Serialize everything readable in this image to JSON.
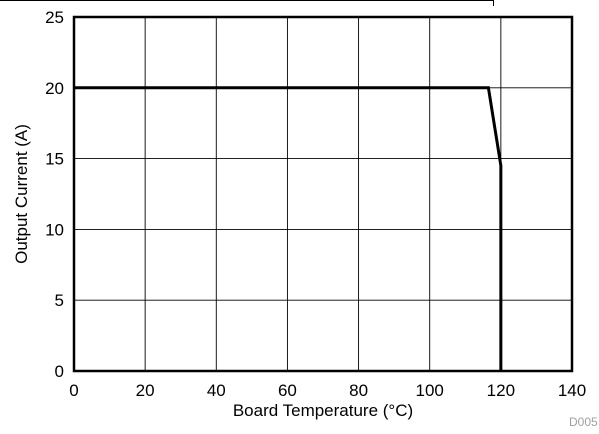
{
  "chart_data": {
    "type": "line",
    "title": "",
    "xlabel": "Board Temperature (°C)",
    "ylabel": "Output Current (A)",
    "xlim": [
      0,
      140
    ],
    "ylim": [
      0,
      25
    ],
    "xticks": [
      0,
      20,
      40,
      60,
      80,
      100,
      120,
      140
    ],
    "yticks": [
      0,
      5,
      10,
      15,
      20,
      25
    ],
    "grid": true,
    "legend": "none",
    "figure_code": "D005",
    "series": [
      {
        "color": "#000000",
        "x": [
          0,
          116.5,
          120,
          120
        ],
        "y": [
          20,
          20,
          14.5,
          0
        ]
      }
    ]
  }
}
